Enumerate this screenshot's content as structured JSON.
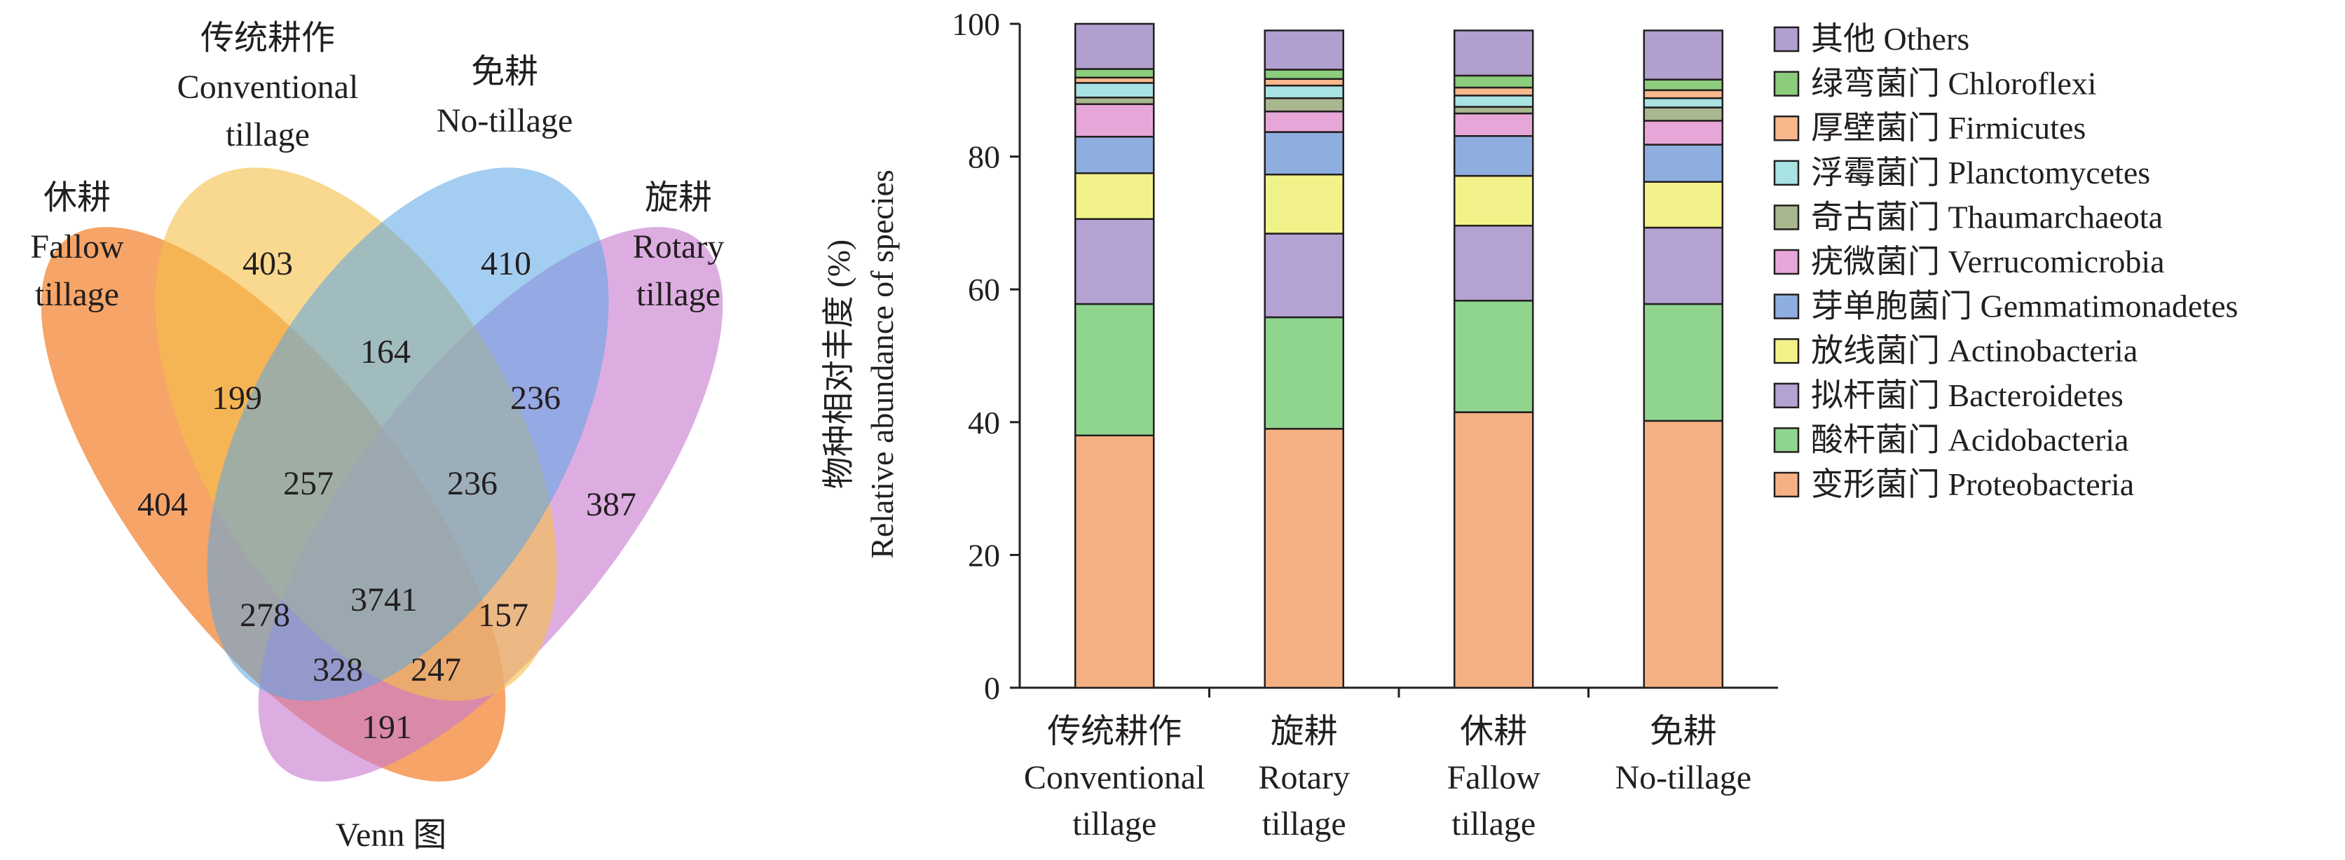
{
  "venn": {
    "caption": "Venn 图",
    "sets": [
      {
        "key": "fallow",
        "label_cn": "休耕",
        "label_en_1": "Fallow",
        "label_en_2": "tillage",
        "color": "#f38a3c"
      },
      {
        "key": "conv",
        "label_cn": "传统耕作",
        "label_en_1": "Conventional",
        "label_en_2": "tillage",
        "color": "#f5c04a"
      },
      {
        "key": "none",
        "label_cn": "免耕",
        "label_en_1": "No-tillage",
        "label_en_2": "",
        "color": "#5aa6e6"
      },
      {
        "key": "rotary",
        "label_cn": "旋耕",
        "label_en_1": "Rotary",
        "label_en_2": "tillage",
        "color": "#c87bd0"
      }
    ],
    "counts": {
      "fallow_only": "404",
      "conv_only": "403",
      "none_only": "410",
      "rotary_only": "387",
      "conv_none": "164",
      "fallow_conv": "199",
      "none_rotary": "236",
      "fallow_conv_none": "257",
      "conv_none_rotary": "236",
      "all": "3741",
      "fallow_none": "278",
      "conv_rotary": "157",
      "fallow_none_rotary": "328",
      "fallow_conv_rotary": "247",
      "fallow_rotary": "191"
    }
  },
  "chart_data": {
    "type": "bar",
    "stacked": true,
    "ylabel_cn": "物种相对丰度 (%)",
    "ylabel_en": "Relative abundance of species",
    "ylim": [
      0,
      100
    ],
    "yticks": [
      "0",
      "20",
      "40",
      "60",
      "80",
      "100"
    ],
    "categories": [
      {
        "cn": "传统耕作",
        "en1": "Conventional",
        "en2": "tillage"
      },
      {
        "cn": "旋耕",
        "en1": "Rotary",
        "en2": "tillage"
      },
      {
        "cn": "休耕",
        "en1": "Fallow",
        "en2": "tillage"
      },
      {
        "cn": "免耕",
        "en1": "No-tillage",
        "en2": ""
      }
    ],
    "legend_position": "right",
    "series": [
      {
        "name": "变形菌门 Proteobacteria",
        "color": "#f5b183",
        "values": [
          38.0,
          39.0,
          41.5,
          40.2
        ]
      },
      {
        "name": "酸杆菌门 Acidobacteria",
        "color": "#8fd58e",
        "values": [
          19.8,
          16.8,
          16.8,
          17.6
        ]
      },
      {
        "name": "拟杆菌门 Bacteroidetes",
        "color": "#b4a2d2",
        "values": [
          12.8,
          12.6,
          11.3,
          11.5
        ]
      },
      {
        "name": "放线菌门 Actinobacteria",
        "color": "#f2f28a",
        "values": [
          6.9,
          8.9,
          7.5,
          6.9
        ]
      },
      {
        "name": "芽单胞菌门 Gemmatimonadetes",
        "color": "#8eaedf",
        "values": [
          5.5,
          6.4,
          6.0,
          5.6
        ]
      },
      {
        "name": "疣微菌门 Verrucomicrobia",
        "color": "#e6a7d8",
        "values": [
          4.9,
          3.1,
          3.4,
          3.6
        ]
      },
      {
        "name": "奇古菌门 Thaumarchaeota",
        "color": "#a9b78f",
        "values": [
          1.0,
          2.0,
          1.0,
          2.0
        ]
      },
      {
        "name": "浮霉菌门 Planctomycetes",
        "color": "#a8e2e3",
        "values": [
          2.2,
          1.9,
          1.7,
          1.4
        ]
      },
      {
        "name": "厚壁菌门 Firmicutes",
        "color": "#f9b78c",
        "values": [
          0.8,
          1.0,
          1.2,
          1.2
        ]
      },
      {
        "name": "绿弯菌门 Chloroflexi",
        "color": "#8ccc7d",
        "values": [
          1.3,
          1.4,
          1.8,
          1.6
        ]
      },
      {
        "name": "其他 Others",
        "color": "#b19fcf",
        "values": [
          6.8,
          5.9,
          6.8,
          7.4
        ]
      }
    ]
  }
}
